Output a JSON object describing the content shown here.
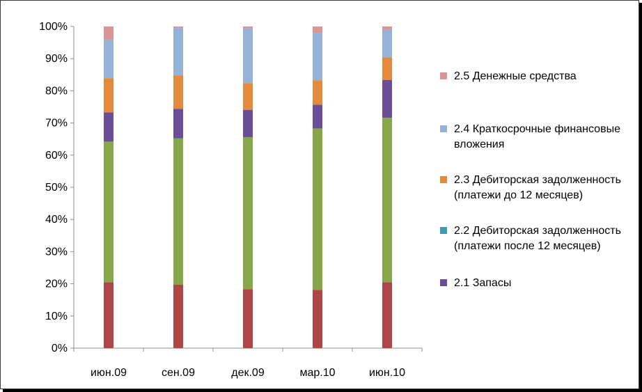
{
  "chart_data": {
    "type": "bar",
    "stacked": true,
    "percent": true,
    "categories": [
      "июн.09",
      "сен.09",
      "дек.09",
      "мар.10",
      "июн.10"
    ],
    "ylim": [
      0,
      100
    ],
    "yticks": [
      "0%",
      "10%",
      "20%",
      "30%",
      "40%",
      "50%",
      "60%",
      "70%",
      "80%",
      "90%",
      "100%"
    ],
    "grid": false,
    "legend": "right",
    "series": [
      {
        "name": "",
        "color": "#b04545",
        "values": [
          20.5,
          19.7,
          18.3,
          18.1,
          20.5
        ]
      },
      {
        "name": "",
        "color": "#88a64a",
        "values": [
          43.7,
          45.5,
          47.3,
          50.2,
          51.1
        ]
      },
      {
        "name": "2.1 Запасы",
        "color": "#6a4e96",
        "values": [
          9.1,
          9.2,
          8.5,
          7.4,
          11.8
        ]
      },
      {
        "name": "2.2 Дебиторская задолженность (платежи после 12 месяцев)",
        "color": "#3f9cb0",
        "values": [
          0,
          0,
          0,
          0,
          0
        ]
      },
      {
        "name": "2.3 Дебиторская задолженность (платежи до 12 месяцев)",
        "color": "#e48a3c",
        "values": [
          10.6,
          10.4,
          8.3,
          7.6,
          7.0
        ]
      },
      {
        "name": "2.4 Краткосрочные финансовые вложения",
        "color": "#95b3d9",
        "values": [
          12.0,
          14.7,
          17.0,
          14.6,
          8.6
        ]
      },
      {
        "name": "2.5 Денежные средства",
        "color": "#d99694",
        "values": [
          4.1,
          0.5,
          0.6,
          2.1,
          1.0
        ]
      }
    ]
  }
}
